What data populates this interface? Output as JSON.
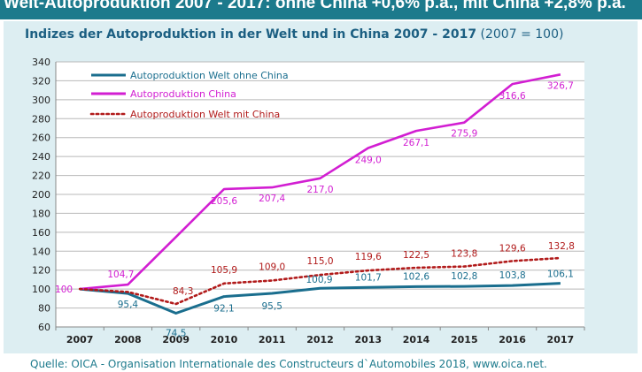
{
  "header": {
    "title": "Welt-Autoproduktion 2007 - 2017: ohne China +0,6% p.a., mit China +2,8% p.a."
  },
  "subtitle": {
    "main": "Indizes der Autoproduktion in der Welt und in China 2007 - 2017",
    "note": "(2007 = 100)"
  },
  "source": "Quelle: OICA - Organisation Internationale des Constructeurs d`Automobiles 2018, www.oica.net.",
  "chart_data": {
    "type": "line",
    "x": [
      "2007",
      "2008",
      "2009",
      "2010",
      "2011",
      "2012",
      "2013",
      "2014",
      "2015",
      "2016",
      "2017"
    ],
    "ylim": [
      60,
      340
    ],
    "yticks": [
      60,
      80,
      100,
      120,
      140,
      160,
      180,
      200,
      220,
      240,
      260,
      280,
      300,
      320,
      340
    ],
    "grid": true,
    "legend": "top-left",
    "series": [
      {
        "name": "Autoproduktion Welt ohne China",
        "color": "#1a6e8e",
        "style": "solid",
        "values": [
          100,
          95.4,
          74.5,
          92.1,
          95.5,
          100.9,
          101.7,
          102.6,
          102.8,
          103.8,
          106.1
        ],
        "labels": [
          "",
          "95,4",
          "74,5",
          "92,1",
          "95,5",
          "100,9",
          "101,7",
          "102,6",
          "102,8",
          "103,8",
          "106,1"
        ]
      },
      {
        "name": "Autoproduktion China",
        "color": "#d21ed2",
        "style": "solid",
        "values": [
          100,
          104.7,
          155,
          205.6,
          207.4,
          217.0,
          249.0,
          267.1,
          275.9,
          316.6,
          326.7
        ],
        "labels": [
          "100",
          "104,7",
          "",
          "205,6",
          "207,4",
          "217,0",
          "249,0",
          "267,1",
          "275,9",
          "316,6",
          "326,7"
        ]
      },
      {
        "name": "Autoproduktion Welt mit China",
        "color": "#b11a1a",
        "style": "dotted",
        "values": [
          100,
          97,
          84.3,
          105.9,
          109.0,
          115.0,
          119.6,
          122.5,
          123.8,
          129.6,
          132.8
        ],
        "labels": [
          "",
          "",
          "84,3",
          "105,9",
          "109,0",
          "115,0",
          "119,6",
          "122,5",
          "123,8",
          "129,6",
          "132,8"
        ]
      }
    ]
  }
}
